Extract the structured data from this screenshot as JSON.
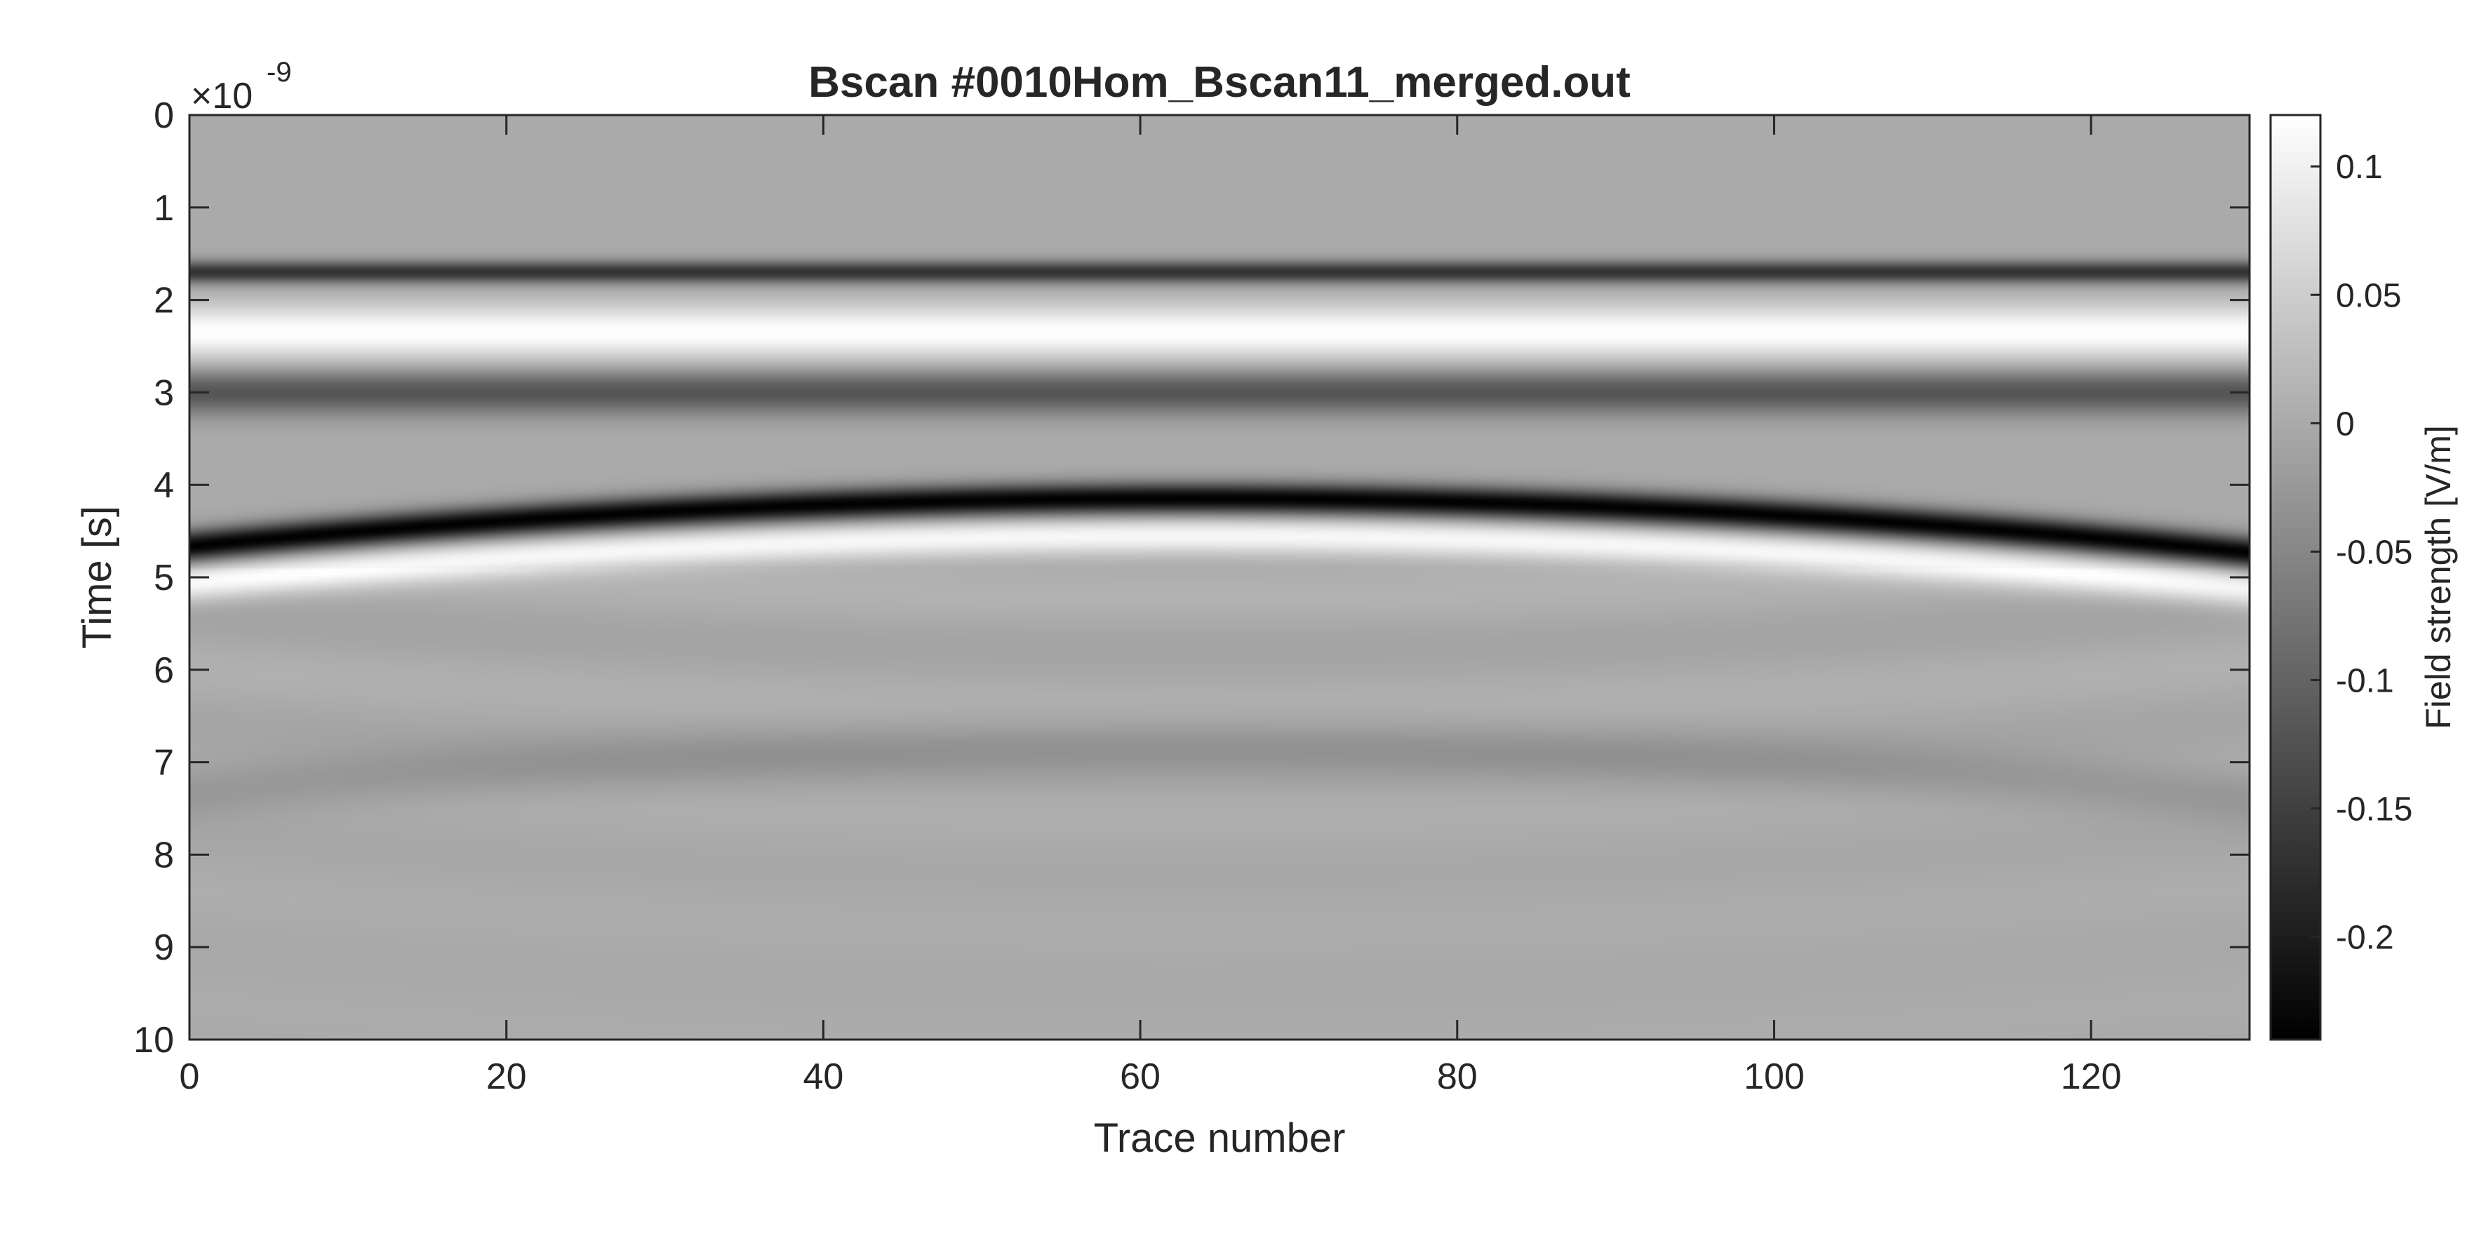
{
  "chart_data": {
    "type": "heatmap",
    "title": "Bscan #0010Hom_Bscan11_merged.out",
    "xlabel": "Trace number",
    "ylabel": "Time [s]",
    "y_exponent_base": "×10",
    "y_exponent_power": "-9",
    "xlim": [
      0,
      130
    ],
    "ylim": [
      0,
      10
    ],
    "y_direction": "reversed",
    "y_unit_scale": 1e-09,
    "xticks": [
      0,
      20,
      40,
      60,
      80,
      100,
      120
    ],
    "xtick_labels": [
      "0",
      "20",
      "40",
      "60",
      "80",
      "100",
      "120"
    ],
    "yticks": [
      0,
      1,
      2,
      3,
      4,
      5,
      6,
      7,
      8,
      9,
      10
    ],
    "ytick_labels": [
      "0",
      "1",
      "2",
      "3",
      "4",
      "5",
      "6",
      "7",
      "8",
      "9",
      "10"
    ],
    "colormap": "gray",
    "colorbar": {
      "label": "Field strength [V/m]",
      "clim": [
        -0.24,
        0.12
      ],
      "ticks": [
        0.1,
        0.05,
        0,
        -0.05,
        -0.1,
        -0.15,
        -0.2
      ],
      "tick_labels": [
        "0.1",
        "0.05",
        "0",
        "-0.05",
        "-0.1",
        "-0.15",
        "-0.2"
      ]
    },
    "features": [
      {
        "name": "direct wave negative lobe",
        "time_ns_center": 1.7,
        "time_ns_halfwidth": 0.12,
        "value": -0.17,
        "curvature_ns": 0
      },
      {
        "name": "direct wave positive lobe",
        "time_ns_center": 2.35,
        "time_ns_halfwidth": 0.3,
        "value": 0.12,
        "curvature_ns": 0
      },
      {
        "name": "direct wave trailing negative",
        "time_ns_center": 3.0,
        "time_ns_halfwidth": 0.24,
        "value": -0.12,
        "curvature_ns": 0
      },
      {
        "name": "reflection hyperbola negative",
        "apex_trace": 63,
        "time_ns_center": 4.15,
        "time_ns_halfwidth": 0.17,
        "value": -0.24,
        "curvature_ns": 0.55
      },
      {
        "name": "reflection hyperbola positive",
        "apex_trace": 63,
        "time_ns_center": 4.55,
        "time_ns_halfwidth": 0.2,
        "value": 0.11,
        "curvature_ns": 0.55
      },
      {
        "name": "late multiple",
        "apex_trace": 63,
        "time_ns_center": 6.85,
        "time_ns_halfwidth": 0.3,
        "value": -0.03,
        "curvature_ns": 0.5
      }
    ]
  }
}
